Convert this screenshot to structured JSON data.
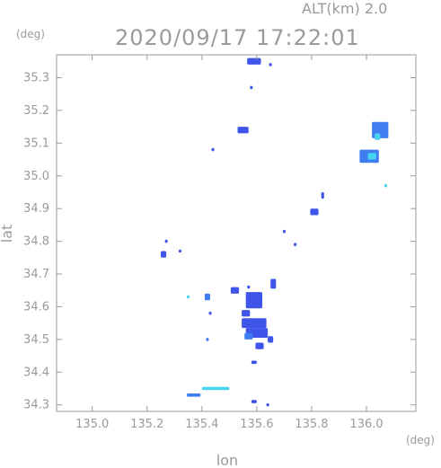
{
  "header": {
    "altitude": "ALT(km) 2.0",
    "timestamp": "2020/09/17 17:22:01"
  },
  "chart_data": {
    "type": "heatmap",
    "title": "2020/09/17 17:22:01",
    "xlabel": "lon",
    "ylabel": "lat",
    "x_unit": "(deg)",
    "y_unit": "(deg)",
    "xlim": [
      134.87,
      136.18
    ],
    "ylim": [
      34.28,
      35.37
    ],
    "xticks": [
      "135.0",
      "135.2",
      "135.4",
      "135.6",
      "135.8",
      "136.0"
    ],
    "yticks": [
      "34.3",
      "34.4",
      "34.5",
      "34.6",
      "34.7",
      "34.8",
      "34.9",
      "35.0",
      "35.1",
      "35.2",
      "35.3"
    ],
    "colors": {
      "strong": "#3f54e8",
      "mid": "#3f7df0",
      "weak": "#47d4f0",
      "axis": "#9a9a9a"
    },
    "echoes": [
      {
        "lon": 135.59,
        "lat": 35.35,
        "w": 0.05,
        "h": 0.02,
        "level": "strong"
      },
      {
        "lon": 135.65,
        "lat": 35.34,
        "w": 0.01,
        "h": 0.01,
        "level": "strong"
      },
      {
        "lon": 135.58,
        "lat": 35.27,
        "w": 0.01,
        "h": 0.01,
        "level": "strong"
      },
      {
        "lon": 135.55,
        "lat": 35.14,
        "w": 0.04,
        "h": 0.02,
        "level": "strong"
      },
      {
        "lon": 135.44,
        "lat": 35.08,
        "w": 0.01,
        "h": 0.01,
        "level": "strong"
      },
      {
        "lon": 136.05,
        "lat": 35.14,
        "w": 0.06,
        "h": 0.05,
        "level": "mid"
      },
      {
        "lon": 136.04,
        "lat": 35.12,
        "w": 0.02,
        "h": 0.02,
        "level": "weak"
      },
      {
        "lon": 136.01,
        "lat": 35.06,
        "w": 0.07,
        "h": 0.04,
        "level": "mid"
      },
      {
        "lon": 136.02,
        "lat": 35.06,
        "w": 0.03,
        "h": 0.02,
        "level": "weak"
      },
      {
        "lon": 136.07,
        "lat": 34.97,
        "w": 0.01,
        "h": 0.01,
        "level": "weak"
      },
      {
        "lon": 135.84,
        "lat": 34.94,
        "w": 0.01,
        "h": 0.02,
        "level": "strong"
      },
      {
        "lon": 135.81,
        "lat": 34.89,
        "w": 0.03,
        "h": 0.02,
        "level": "strong"
      },
      {
        "lon": 135.7,
        "lat": 34.83,
        "w": 0.01,
        "h": 0.01,
        "level": "strong"
      },
      {
        "lon": 135.74,
        "lat": 34.79,
        "w": 0.01,
        "h": 0.01,
        "level": "strong"
      },
      {
        "lon": 135.27,
        "lat": 34.8,
        "w": 0.01,
        "h": 0.01,
        "level": "strong"
      },
      {
        "lon": 135.26,
        "lat": 34.76,
        "w": 0.02,
        "h": 0.02,
        "level": "strong"
      },
      {
        "lon": 135.32,
        "lat": 34.77,
        "w": 0.01,
        "h": 0.01,
        "level": "strong"
      },
      {
        "lon": 135.66,
        "lat": 34.67,
        "w": 0.02,
        "h": 0.03,
        "level": "strong"
      },
      {
        "lon": 135.57,
        "lat": 34.66,
        "w": 0.01,
        "h": 0.01,
        "level": "strong"
      },
      {
        "lon": 135.59,
        "lat": 34.62,
        "w": 0.06,
        "h": 0.05,
        "level": "strong"
      },
      {
        "lon": 135.56,
        "lat": 34.58,
        "w": 0.03,
        "h": 0.02,
        "level": "strong"
      },
      {
        "lon": 135.59,
        "lat": 34.55,
        "w": 0.09,
        "h": 0.03,
        "level": "strong"
      },
      {
        "lon": 135.6,
        "lat": 34.52,
        "w": 0.08,
        "h": 0.03,
        "level": "strong"
      },
      {
        "lon": 135.57,
        "lat": 34.51,
        "w": 0.03,
        "h": 0.02,
        "level": "mid"
      },
      {
        "lon": 135.65,
        "lat": 34.5,
        "w": 0.02,
        "h": 0.02,
        "level": "strong"
      },
      {
        "lon": 135.61,
        "lat": 34.48,
        "w": 0.03,
        "h": 0.02,
        "level": "strong"
      },
      {
        "lon": 135.59,
        "lat": 34.43,
        "w": 0.02,
        "h": 0.01,
        "level": "strong"
      },
      {
        "lon": 135.52,
        "lat": 34.65,
        "w": 0.03,
        "h": 0.02,
        "level": "strong"
      },
      {
        "lon": 135.42,
        "lat": 34.63,
        "w": 0.02,
        "h": 0.02,
        "level": "mid"
      },
      {
        "lon": 135.43,
        "lat": 34.58,
        "w": 0.01,
        "h": 0.01,
        "level": "strong"
      },
      {
        "lon": 135.42,
        "lat": 34.5,
        "w": 0.01,
        "h": 0.01,
        "level": "mid"
      },
      {
        "lon": 135.45,
        "lat": 34.35,
        "w": 0.1,
        "h": 0.01,
        "level": "weak"
      },
      {
        "lon": 135.37,
        "lat": 34.33,
        "w": 0.05,
        "h": 0.01,
        "level": "mid"
      },
      {
        "lon": 135.59,
        "lat": 34.31,
        "w": 0.02,
        "h": 0.01,
        "level": "strong"
      },
      {
        "lon": 135.64,
        "lat": 34.3,
        "w": 0.01,
        "h": 0.01,
        "level": "strong"
      },
      {
        "lon": 135.35,
        "lat": 34.63,
        "w": 0.01,
        "h": 0.01,
        "level": "weak"
      }
    ]
  }
}
